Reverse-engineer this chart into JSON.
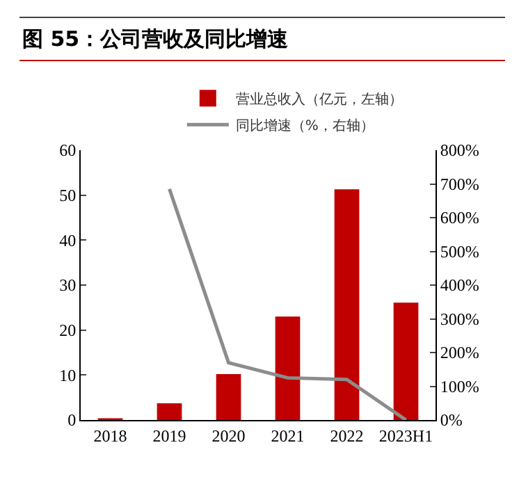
{
  "chart_data": {
    "type": "bar",
    "title": "图 55：公司营收及同比增速",
    "categories": [
      "2018",
      "2019",
      "2020",
      "2021",
      "2022",
      "2023H1"
    ],
    "series": [
      {
        "name": "营业总收入（亿元，左轴）",
        "color": "#c00000",
        "values": [
          0.4,
          3.7,
          10.2,
          23,
          51.3,
          26.1
        ]
      },
      {
        "name": "同比增速（%，右轴）",
        "type": "line",
        "axis": "y2",
        "color": "#8c8c8c",
        "marker": "none",
        "line_style": "solid",
        "values": [
          null,
          685,
          170,
          125,
          120,
          0
        ]
      }
    ],
    "ylim": [
      0,
      60
    ],
    "yticks": [
      0,
      10,
      20,
      30,
      40,
      50,
      60
    ],
    "y2lim": [
      0,
      800
    ],
    "y2ticks": [
      {
        "value": 0,
        "label": "0%"
      },
      {
        "value": 100,
        "label": "100%"
      },
      {
        "value": 200,
        "label": "200%"
      },
      {
        "value": 300,
        "label": "300%"
      },
      {
        "value": 400,
        "label": "400%"
      },
      {
        "value": 500,
        "label": "500%"
      },
      {
        "value": 600,
        "label": "600%"
      },
      {
        "value": 700,
        "label": "700%"
      },
      {
        "value": 800,
        "label": "800%"
      }
    ],
    "legend": "top",
    "grid": false
  }
}
